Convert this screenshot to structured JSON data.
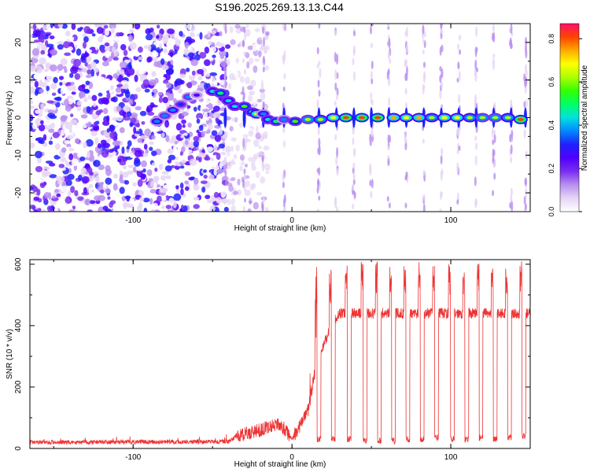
{
  "title": "S196.2025.269.13.13.C44",
  "chart_data": [
    {
      "type": "heatmap",
      "xlabel": "Height of straight line (km)",
      "ylabel": "Frequency (Hz)",
      "xlim": [
        -165,
        150
      ],
      "ylim": [
        -25,
        25
      ],
      "x_ticks": [
        -100,
        0,
        100
      ],
      "y_ticks": [
        -20,
        -10,
        0,
        10,
        20
      ],
      "colorbar": {
        "label": "Normalized spectral amplitude",
        "range": [
          0.0,
          0.87
        ],
        "ticks": [
          "0.0",
          "0.2",
          "0.4",
          "0.6",
          "0.8"
        ],
        "tick_values": [
          0.0,
          0.2,
          0.4,
          0.6,
          0.8
        ],
        "colors": [
          "#ffffff",
          "#e6d5f5",
          "#b98ff0",
          "#7a2ef0",
          "#5000ff",
          "#2020ff",
          "#0088ff",
          "#00e0e0",
          "#00ff66",
          "#33ff00",
          "#aaff00",
          "#ffff00",
          "#ffaa00",
          "#ff4400",
          "#ff1066"
        ]
      },
      "signal_track": [
        {
          "x": -85,
          "f": -1,
          "amp": 0.4
        },
        {
          "x": -80,
          "f": 0.5,
          "amp": 0.35
        },
        {
          "x": -75,
          "f": 2,
          "amp": 0.4
        },
        {
          "x": -70,
          "f": 3.5,
          "amp": 0.3
        },
        {
          "x": -65,
          "f": 5.5,
          "amp": 0.35
        },
        {
          "x": -60,
          "f": 6,
          "amp": 0.25
        },
        {
          "x": -50,
          "f": 7,
          "amp": 0.45
        },
        {
          "x": -45,
          "f": 6.5,
          "amp": 0.5
        },
        {
          "x": -40,
          "f": 4.5,
          "amp": 0.45
        },
        {
          "x": -36,
          "f": 3,
          "amp": 0.45
        },
        {
          "x": -30,
          "f": 3,
          "amp": 0.55
        },
        {
          "x": -25,
          "f": 1.5,
          "amp": 0.5
        },
        {
          "x": -22,
          "f": 1,
          "amp": 0.7
        },
        {
          "x": -18,
          "f": 1,
          "amp": 0.4
        },
        {
          "x": -15,
          "f": -0.5,
          "amp": 0.45
        },
        {
          "x": -10,
          "f": -1,
          "amp": 0.5
        },
        {
          "x": -5,
          "f": -0.5,
          "amp": 0.35
        },
        {
          "x": 2,
          "f": -1,
          "amp": 0.55
        },
        {
          "x": 10,
          "f": -0.5,
          "amp": 0.6
        },
        {
          "x": 18,
          "f": -0.5,
          "amp": 0.65
        },
        {
          "x": 26,
          "f": 0,
          "amp": 0.7
        },
        {
          "x": 34,
          "f": 0,
          "amp": 0.8
        },
        {
          "x": 44,
          "f": 0,
          "amp": 0.82
        },
        {
          "x": 54,
          "f": 0,
          "amp": 0.8
        },
        {
          "x": 64,
          "f": 0,
          "amp": 0.75
        },
        {
          "x": 72,
          "f": 0,
          "amp": 0.7
        },
        {
          "x": 80,
          "f": 0,
          "amp": 0.72
        },
        {
          "x": 88,
          "f": 0,
          "amp": 0.65
        },
        {
          "x": 96,
          "f": 0,
          "amp": 0.7
        },
        {
          "x": 104,
          "f": 0,
          "amp": 0.68
        },
        {
          "x": 112,
          "f": 0,
          "amp": 0.65
        },
        {
          "x": 120,
          "f": 0,
          "amp": 0.6
        },
        {
          "x": 128,
          "f": 0,
          "amp": 0.62
        },
        {
          "x": 136,
          "f": 0,
          "amp": 0.65
        },
        {
          "x": 144,
          "f": -0.5,
          "amp": 0.8
        }
      ],
      "vertical_bursts_x": [
        -42,
        -30,
        -18,
        -5,
        17,
        28,
        39,
        50,
        61,
        72,
        83,
        94,
        105,
        116,
        127,
        138,
        147
      ]
    },
    {
      "type": "line",
      "series": [
        {
          "name": "SNR",
          "color": "#ee3333"
        }
      ],
      "xlabel": "Height of straight line (km)",
      "ylabel": "SNR (10 * v/v)",
      "xlim": [
        -165,
        150
      ],
      "ylim": [
        0,
        615
      ],
      "x_ticks": [
        -100,
        0,
        100
      ],
      "y_ticks": [
        0,
        200,
        400,
        600
      ],
      "envelope": [
        {
          "x": -165,
          "snr": 20
        },
        {
          "x": -40,
          "snr": 22
        },
        {
          "x": -35,
          "snr": 40
        },
        {
          "x": -20,
          "snr": 60
        },
        {
          "x": -10,
          "snr": 80
        },
        {
          "x": -5,
          "snr": 65
        },
        {
          "x": 0,
          "snr": 30
        },
        {
          "x": 10,
          "snr": 120
        },
        {
          "x": 15,
          "snr": 260
        },
        {
          "x": 20,
          "snr": 340
        },
        {
          "x": 26,
          "snr": 410
        },
        {
          "x": 30,
          "snr": 440
        },
        {
          "x": 150,
          "snr": 440
        }
      ],
      "dropouts": [
        {
          "x": 17,
          "snr": 30
        },
        {
          "x": 26,
          "snr": 30
        },
        {
          "x": 36,
          "snr": 30
        },
        {
          "x": 46,
          "snr": 25
        },
        {
          "x": 55,
          "snr": 25
        },
        {
          "x": 64,
          "snr": 25
        },
        {
          "x": 73,
          "snr": 30
        },
        {
          "x": 82,
          "snr": 30
        },
        {
          "x": 91,
          "snr": 35
        },
        {
          "x": 101,
          "snr": 30
        },
        {
          "x": 110,
          "snr": 30
        },
        {
          "x": 119,
          "snr": 35
        },
        {
          "x": 128,
          "snr": 30
        },
        {
          "x": 137,
          "snr": 35
        },
        {
          "x": 146,
          "snr": 40
        }
      ],
      "peak_max": 610
    }
  ]
}
